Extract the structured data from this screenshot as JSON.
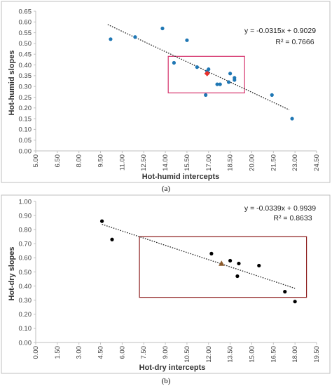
{
  "chart_data": [
    {
      "type": "scatter",
      "panel_label": "(a)",
      "xlabel": "Hot-humid intercepts",
      "ylabel": "Hot-humid slopes",
      "xlim": [
        5.0,
        24.5
      ],
      "ylim": [
        0.0,
        0.65
      ],
      "x_ticks": [
        "5.00",
        "6.50",
        "8.00",
        "9.50",
        "11.00",
        "12.50",
        "14.00",
        "15.50",
        "17.00",
        "18.50",
        "20.00",
        "21.50",
        "23.00",
        "24.50"
      ],
      "y_ticks": [
        "0.00",
        "0.05",
        "0.10",
        "0.15",
        "0.20",
        "0.25",
        "0.30",
        "0.35",
        "0.40",
        "0.45",
        "0.50",
        "0.55",
        "0.60",
        "0.65"
      ],
      "grid": false,
      "series": [
        {
          "color": "#1f77b4",
          "marker": "circle",
          "points": [
            {
              "x": 10.2,
              "y": 0.52
            },
            {
              "x": 11.9,
              "y": 0.53
            },
            {
              "x": 13.8,
              "y": 0.57
            },
            {
              "x": 14.6,
              "y": 0.41
            },
            {
              "x": 15.5,
              "y": 0.515
            },
            {
              "x": 16.2,
              "y": 0.39
            },
            {
              "x": 16.8,
              "y": 0.26
            },
            {
              "x": 16.9,
              "y": 0.37
            },
            {
              "x": 17.0,
              "y": 0.38
            },
            {
              "x": 17.6,
              "y": 0.31
            },
            {
              "x": 17.8,
              "y": 0.31
            },
            {
              "x": 18.4,
              "y": 0.32
            },
            {
              "x": 18.5,
              "y": 0.36
            },
            {
              "x": 18.8,
              "y": 0.33
            },
            {
              "x": 18.8,
              "y": 0.34
            },
            {
              "x": 21.4,
              "y": 0.26
            },
            {
              "x": 22.8,
              "y": 0.15
            }
          ]
        },
        {
          "color": "#e8302c",
          "marker": "diamond",
          "points": [
            {
              "x": 16.9,
              "y": 0.36
            }
          ]
        }
      ],
      "trendline": {
        "slope": -0.0315,
        "intercept": 0.9029,
        "x_range": [
          10.0,
          22.6
        ],
        "equation": "y = -0.0315x + 0.9029",
        "r2": "R² = 0.7666"
      },
      "highlight_box": {
        "x0": 14.2,
        "x1": 19.5,
        "y0": 0.27,
        "y1": 0.44,
        "color": "#d6336c"
      }
    },
    {
      "type": "scatter",
      "panel_label": "(b)",
      "xlabel": "Hot-dry intercepts",
      "ylabel": "Hot-dry slopes",
      "xlim": [
        0.0,
        19.5
      ],
      "ylim": [
        0.0,
        1.0
      ],
      "x_ticks": [
        "0.00",
        "1.50",
        "3.00",
        "4.50",
        "6.00",
        "7.50",
        "9.00",
        "10.50",
        "12.00",
        "13.50",
        "15.00",
        "16.50",
        "18.00",
        "19.50"
      ],
      "y_ticks": [
        "0.00",
        "0.10",
        "0.20",
        "0.30",
        "0.40",
        "0.50",
        "0.60",
        "0.70",
        "0.80",
        "0.90",
        "1.00"
      ],
      "grid": false,
      "series": [
        {
          "color": "#000000",
          "marker": "circle",
          "points": [
            {
              "x": 4.6,
              "y": 0.86
            },
            {
              "x": 5.3,
              "y": 0.73
            },
            {
              "x": 12.2,
              "y": 0.63
            },
            {
              "x": 13.5,
              "y": 0.58
            },
            {
              "x": 14.0,
              "y": 0.47
            },
            {
              "x": 14.1,
              "y": 0.56
            },
            {
              "x": 15.5,
              "y": 0.545
            },
            {
              "x": 17.3,
              "y": 0.36
            },
            {
              "x": 18.0,
              "y": 0.29
            }
          ]
        },
        {
          "color": "#8b5a2b",
          "marker": "triangle",
          "points": [
            {
              "x": 12.9,
              "y": 0.56
            }
          ]
        }
      ],
      "trendline": {
        "slope": -0.0339,
        "intercept": 0.9939,
        "x_range": [
          4.6,
          18.0
        ],
        "equation": "y = -0.0339x + 0.9939",
        "r2": "R² = 0.8633"
      },
      "highlight_box": {
        "x0": 7.2,
        "x1": 18.8,
        "y0": 0.32,
        "y1": 0.75,
        "color": "#8b1a1a"
      }
    }
  ]
}
